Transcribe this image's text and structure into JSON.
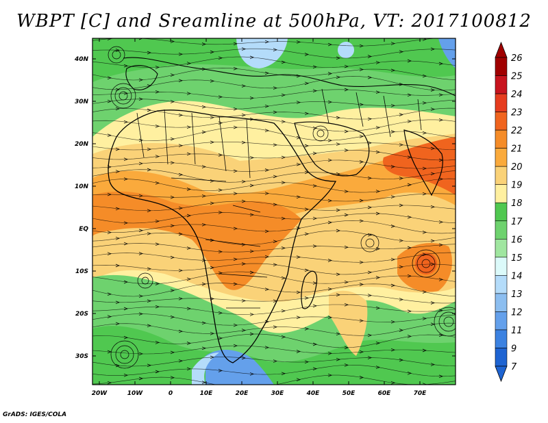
{
  "title": "WBPT [C] and Sreamline at 500hPa, VT: 2017100812",
  "credit": "GrADS: IGES/COLA",
  "lat_labels": [
    "40N",
    "30N",
    "20N",
    "10N",
    "EQ",
    "10S",
    "20S",
    "30S"
  ],
  "lon_labels": [
    "20W",
    "10W",
    "0",
    "10E",
    "20E",
    "30E",
    "40E",
    "50E",
    "60E",
    "70E"
  ],
  "colorbar": {
    "labels": [
      "26",
      "25",
      "24",
      "23",
      "22",
      "21",
      "20",
      "19",
      "18",
      "17",
      "16",
      "15",
      "14",
      "13",
      "12",
      "11",
      "9",
      "7"
    ],
    "colors": [
      "#a00000",
      "#c8141e",
      "#e63c1e",
      "#f0641e",
      "#f58c28",
      "#faaa3c",
      "#fad278",
      "#fff0a0",
      "#50c850",
      "#6ed26e",
      "#a0e6a0",
      "#dcfafa",
      "#b4dcfa",
      "#8cbef0",
      "#64a0eb",
      "#3c82e1",
      "#1e64d2"
    ]
  },
  "colors": {
    "green_dark": "#50c850",
    "green_mid": "#6ed26e",
    "green_light": "#a0e6a0",
    "yellow": "#fff0a0",
    "orange_light": "#fad278",
    "orange": "#faaa3c",
    "orange_dark": "#f58c28",
    "red_orange": "#f0641e",
    "blue_light": "#b4dcfa",
    "blue": "#64a0eb"
  }
}
